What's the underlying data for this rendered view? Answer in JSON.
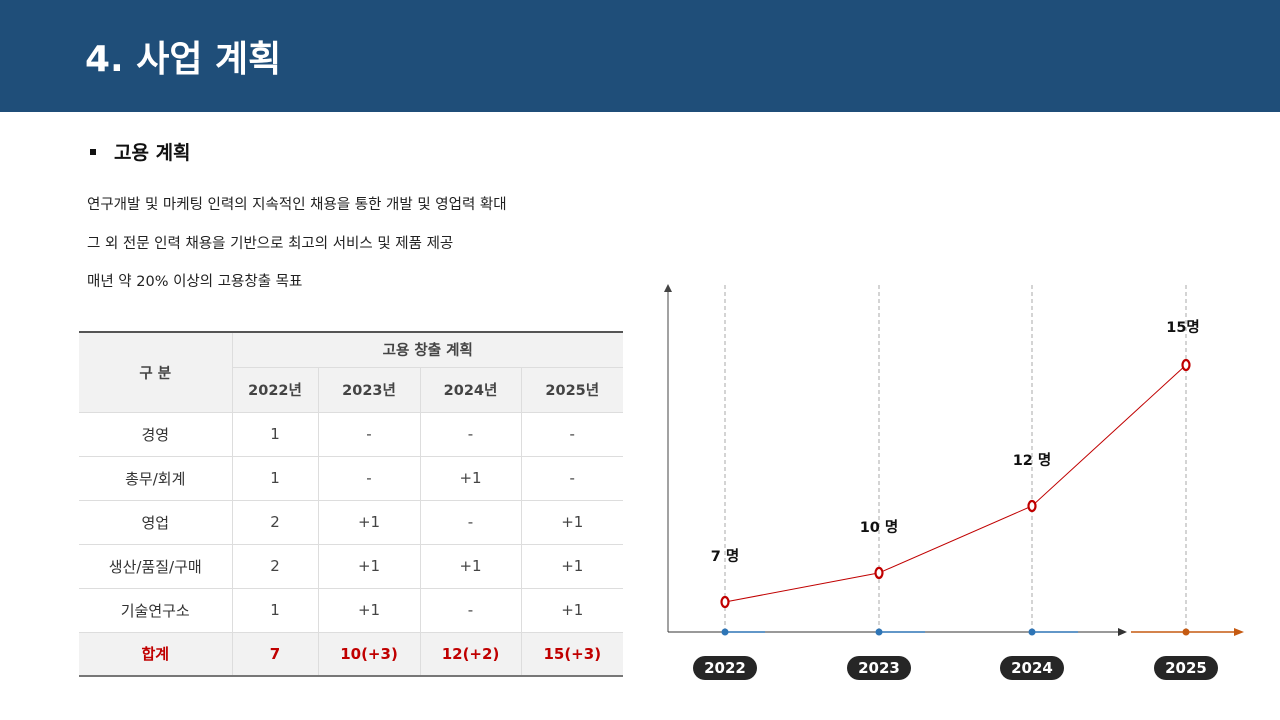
{
  "header": {
    "title": "4. 사업 계획"
  },
  "section": {
    "title": "고용 계획",
    "lines": [
      "연구개발 및 마케팅 인력의 지속적인 채용을 통한 개발 및 영업력 확대",
      "그 외 전문 인력 채용을 기반으로 최고의 서비스 및 제품 제공",
      "매년 약 20% 이상의 고용창출 목표"
    ]
  },
  "table": {
    "category_header": "구 분",
    "group_header": "고용 창출 계획",
    "years": [
      "2022년",
      "2023년",
      "2024년",
      "2025년"
    ],
    "rows": [
      {
        "name": "경영",
        "values": [
          "1",
          "-",
          "-",
          "-"
        ]
      },
      {
        "name": "총무/회계",
        "values": [
          "1",
          "-",
          "+1",
          "-"
        ]
      },
      {
        "name": "영업",
        "values": [
          "2",
          "+1",
          "-",
          "+1"
        ]
      },
      {
        "name": "생산/품질/구매",
        "values": [
          "2",
          "+1",
          "+1",
          "+1"
        ]
      },
      {
        "name": "기술연구소",
        "values": [
          "1",
          "+1",
          "-",
          "+1"
        ]
      }
    ],
    "total": {
      "name": "합계",
      "values": [
        "7",
        "10(+3)",
        "12(+2)",
        "15(+3)"
      ]
    }
  },
  "chart_data": {
    "type": "line",
    "categories": [
      "2022",
      "2023",
      "2024",
      "2025"
    ],
    "values": [
      7,
      10,
      12,
      15
    ],
    "data_labels": [
      "7 명",
      "10 명",
      "12 명",
      "15명"
    ],
    "colors": {
      "line": "#c00000",
      "axis": "#333333",
      "past": "#2e75b6",
      "future": "#c55a11"
    }
  }
}
